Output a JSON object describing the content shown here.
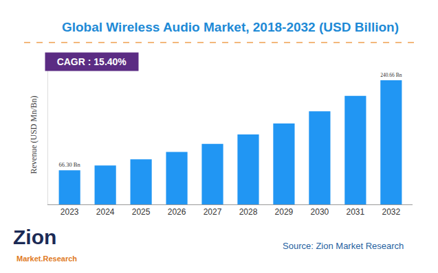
{
  "chart_data": {
    "type": "bar",
    "title": "Global Wireless Audio Market, 2018-2032 (USD Billion)",
    "y_label": "Revenue (USD Mn/Bn)",
    "annotations": [
      "CAGR : 15.40%",
      "Source: Zion Market Research",
      "Zion",
      "Market.Research"
    ],
    "categories": [
      "2023",
      "2024",
      "2025",
      "2026",
      "2027",
      "2028",
      "2029",
      "2030",
      "2031",
      "2032"
    ],
    "values": [
      66.3,
      75.5,
      87.3,
      101.7,
      117.5,
      135.8,
      156.8,
      180.4,
      210.5,
      240.66
    ],
    "value_labels": [
      "66.30 Bn",
      null,
      null,
      null,
      null,
      null,
      null,
      null,
      null,
      "240.66 Bn"
    ],
    "data_labels": true,
    "color": "#2196f3",
    "ylim": [
      0,
      270
    ],
    "tick_labels": "x",
    "grid": false
  }
}
